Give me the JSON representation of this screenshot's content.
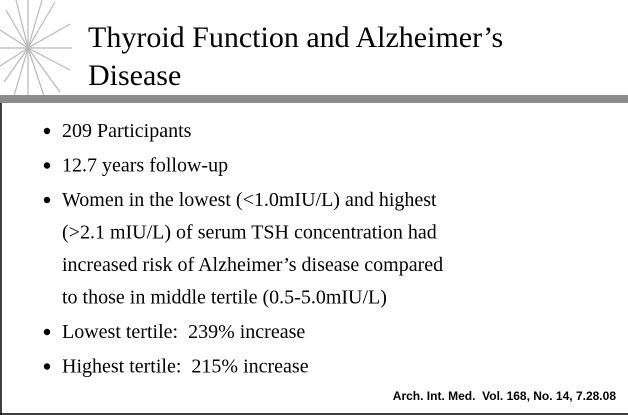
{
  "title": [
    "Thyroid Function and Alzheimer’s",
    "Disease"
  ],
  "bullets": [
    [
      "209 Participants"
    ],
    [
      "12.7 years follow-up"
    ],
    [
      "Women in the lowest (<1.0mIU/L) and highest",
      "(>2.1 mIU/L) of serum TSH concentration had",
      "increased risk of Alzheimer’s disease compared",
      "to those in middle tertile (0.5-5.0mIU/L)"
    ],
    [
      "Lowest tertile:  239% increase"
    ],
    [
      "Highest tertile:  215% increase"
    ]
  ],
  "citation": "Arch. Int. Med.  Vol. 168, No. 14, 7.28.08"
}
